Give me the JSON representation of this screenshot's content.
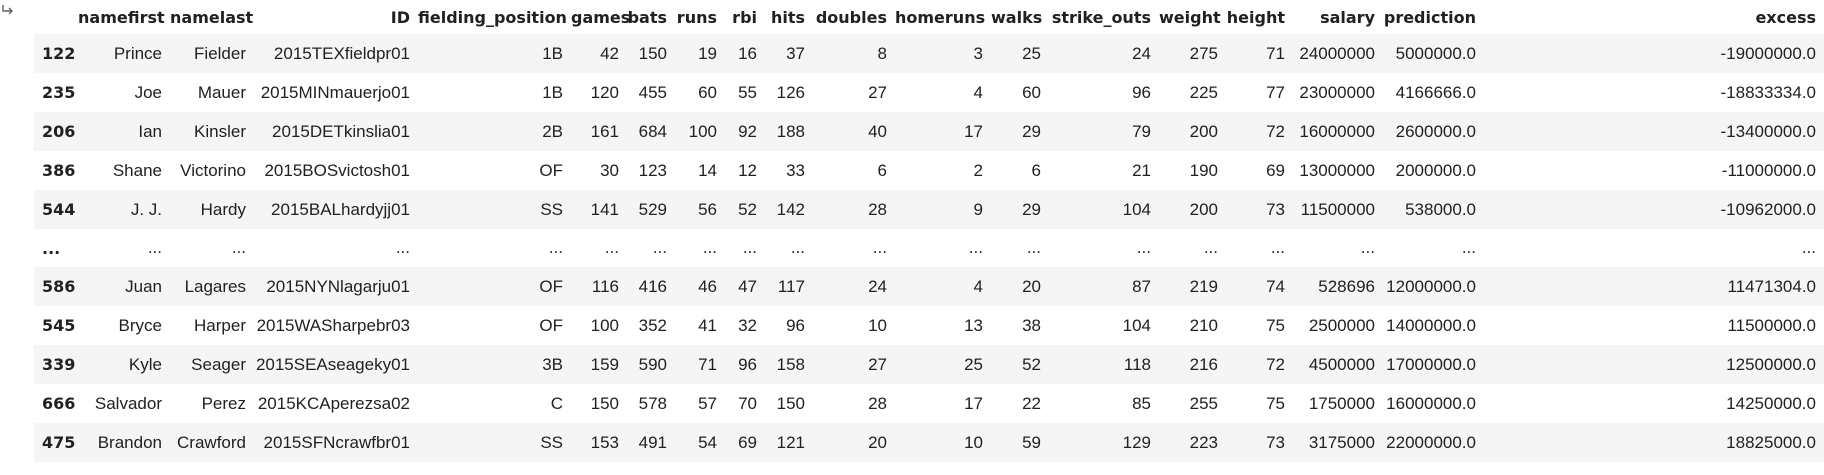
{
  "columns": [
    "",
    "namefirst",
    "namelast",
    "ID",
    "fielding_position",
    "games",
    "bats",
    "runs",
    "rbi",
    "hits",
    "doubles",
    "homeruns",
    "walks",
    "strike_outs",
    "weight",
    "height",
    "salary",
    "prediction",
    "excess"
  ],
  "rows": [
    [
      "122",
      "Prince",
      "Fielder",
      "2015TEXfieldpr01",
      "1B",
      "42",
      "150",
      "19",
      "16",
      "37",
      "8",
      "3",
      "25",
      "24",
      "275",
      "71",
      "24000000",
      "5000000.0",
      "-19000000.0"
    ],
    [
      "235",
      "Joe",
      "Mauer",
      "2015MINmauerjo01",
      "1B",
      "120",
      "455",
      "60",
      "55",
      "126",
      "27",
      "4",
      "60",
      "96",
      "225",
      "77",
      "23000000",
      "4166666.0",
      "-18833334.0"
    ],
    [
      "206",
      "Ian",
      "Kinsler",
      "2015DETkinslia01",
      "2B",
      "161",
      "684",
      "100",
      "92",
      "188",
      "40",
      "17",
      "29",
      "79",
      "200",
      "72",
      "16000000",
      "2600000.0",
      "-13400000.0"
    ],
    [
      "386",
      "Shane",
      "Victorino",
      "2015BOSvictosh01",
      "OF",
      "30",
      "123",
      "14",
      "12",
      "33",
      "6",
      "2",
      "6",
      "21",
      "190",
      "69",
      "13000000",
      "2000000.0",
      "-11000000.0"
    ],
    [
      "544",
      "J. J.",
      "Hardy",
      "2015BALhardyjj01",
      "SS",
      "141",
      "529",
      "56",
      "52",
      "142",
      "28",
      "9",
      "29",
      "104",
      "200",
      "73",
      "11500000",
      "538000.0",
      "-10962000.0"
    ],
    [
      "...",
      "...",
      "...",
      "...",
      "...",
      "...",
      "...",
      "...",
      "...",
      "...",
      "...",
      "...",
      "...",
      "...",
      "...",
      "...",
      "...",
      "...",
      "..."
    ],
    [
      "586",
      "Juan",
      "Lagares",
      "2015NYNlagarju01",
      "OF",
      "116",
      "416",
      "46",
      "47",
      "117",
      "24",
      "4",
      "20",
      "87",
      "219",
      "74",
      "528696",
      "12000000.0",
      "11471304.0"
    ],
    [
      "545",
      "Bryce",
      "Harper",
      "2015WASharpebr03",
      "OF",
      "100",
      "352",
      "41",
      "32",
      "96",
      "10",
      "13",
      "38",
      "104",
      "210",
      "75",
      "2500000",
      "14000000.0",
      "11500000.0"
    ],
    [
      "339",
      "Kyle",
      "Seager",
      "2015SEAseageky01",
      "3B",
      "159",
      "590",
      "71",
      "96",
      "158",
      "27",
      "25",
      "52",
      "118",
      "216",
      "72",
      "4500000",
      "17000000.0",
      "12500000.0"
    ],
    [
      "666",
      "Salvador",
      "Perez",
      "2015KCAperezsa02",
      "C",
      "150",
      "578",
      "57",
      "70",
      "150",
      "28",
      "17",
      "22",
      "85",
      "255",
      "75",
      "1750000",
      "16000000.0",
      "14250000.0"
    ],
    [
      "475",
      "Brandon",
      "Crawford",
      "2015SFNcrawfbr01",
      "SS",
      "153",
      "491",
      "54",
      "69",
      "121",
      "20",
      "10",
      "59",
      "129",
      "223",
      "73",
      "3175000",
      "22000000.0",
      "18825000.0"
    ]
  ]
}
